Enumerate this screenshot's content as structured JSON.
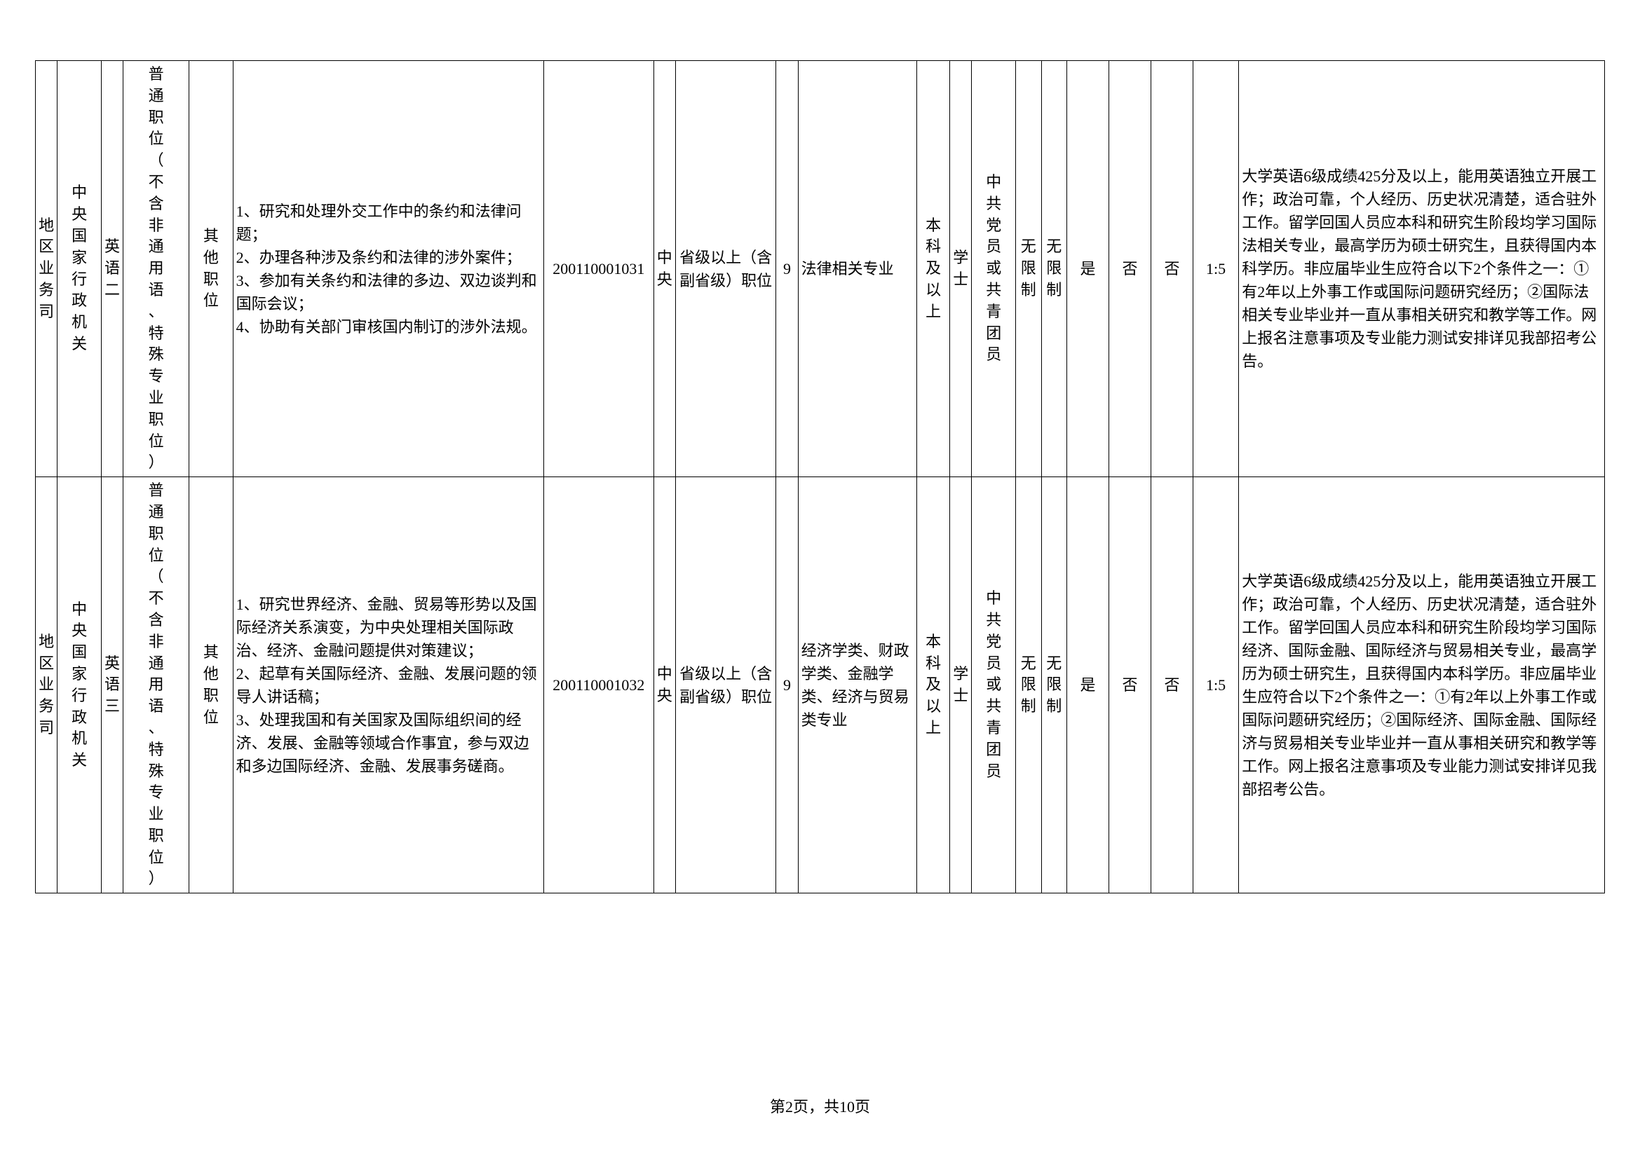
{
  "footer": "第2页，共10页",
  "table": {
    "rows": [
      {
        "c1": "地区业务司",
        "c2": "中央国家行政机关",
        "c3": "英语二",
        "c4": "普通职位（不含非通用语、特殊专业职位）",
        "c5": "其他职位",
        "c6": "1、研究和处理外交工作中的条约和法律问题；\n2、办理各种涉及条约和法律的涉外案件；\n3、参加有关条约和法律的多边、双边谈判和国际会议；\n4、协助有关部门审核国内制订的涉外法规。",
        "c7": "200110001031",
        "c8": "中央",
        "c9": "省级以上（含副省级）职位",
        "c10": "9",
        "c11": "法律相关专业",
        "c12": "本科及以上",
        "c13": "学士",
        "c14": "中共党员或共青团员",
        "c15": "无限制",
        "c16": "无限制",
        "c17": "是",
        "c18": "否",
        "c19": "否",
        "c20": "1:5",
        "c21": "大学英语6级成绩425分及以上，能用英语独立开展工作；政治可靠，个人经历、历史状况清楚，适合驻外工作。留学回国人员应本科和研究生阶段均学习国际法相关专业，最高学历为硕士研究生，且获得国内本科学历。非应届毕业生应符合以下2个条件之一：①有2年以上外事工作或国际问题研究经历；②国际法相关专业毕业并一直从事相关研究和教学等工作。网上报名注意事项及专业能力测试安排详见我部招考公告。"
      },
      {
        "c1": "地区业务司",
        "c2": "中央国家行政机关",
        "c3": "英语三",
        "c4": "普通职位（不含非通用语、特殊专业职位）",
        "c5": "其他职位",
        "c6": "1、研究世界经济、金融、贸易等形势以及国际经济关系演变，为中央处理相关国际政治、经济、金融问题提供对策建议；\n2、起草有关国际经济、金融、发展问题的领导人讲话稿；\n3、处理我国和有关国家及国际组织间的经济、发展、金融等领域合作事宜，参与双边和多边国际经济、金融、发展事务磋商。",
        "c7": "200110001032",
        "c8": "中央",
        "c9": "省级以上（含副省级）职位",
        "c10": "9",
        "c11": "经济学类、财政学类、金融学类、经济与贸易类专业",
        "c12": "本科及以上",
        "c13": "学士",
        "c14": "中共党员或共青团员",
        "c15": "无限制",
        "c16": "无限制",
        "c17": "是",
        "c18": "否",
        "c19": "否",
        "c20": "1:5",
        "c21": "大学英语6级成绩425分及以上，能用英语独立开展工作；政治可靠，个人经历、历史状况清楚，适合驻外工作。留学回国人员应本科和研究生阶段均学习国际经济、国际金融、国际经济与贸易相关专业，最高学历为硕士研究生，且获得国内本科学历。非应届毕业生应符合以下2个条件之一：①有2年以上外事工作或国际问题研究经历；②国际经济、国际金融、国际经济与贸易相关专业毕业并一直从事相关研究和教学等工作。网上报名注意事项及专业能力测试安排详见我部招考公告。"
      }
    ]
  }
}
